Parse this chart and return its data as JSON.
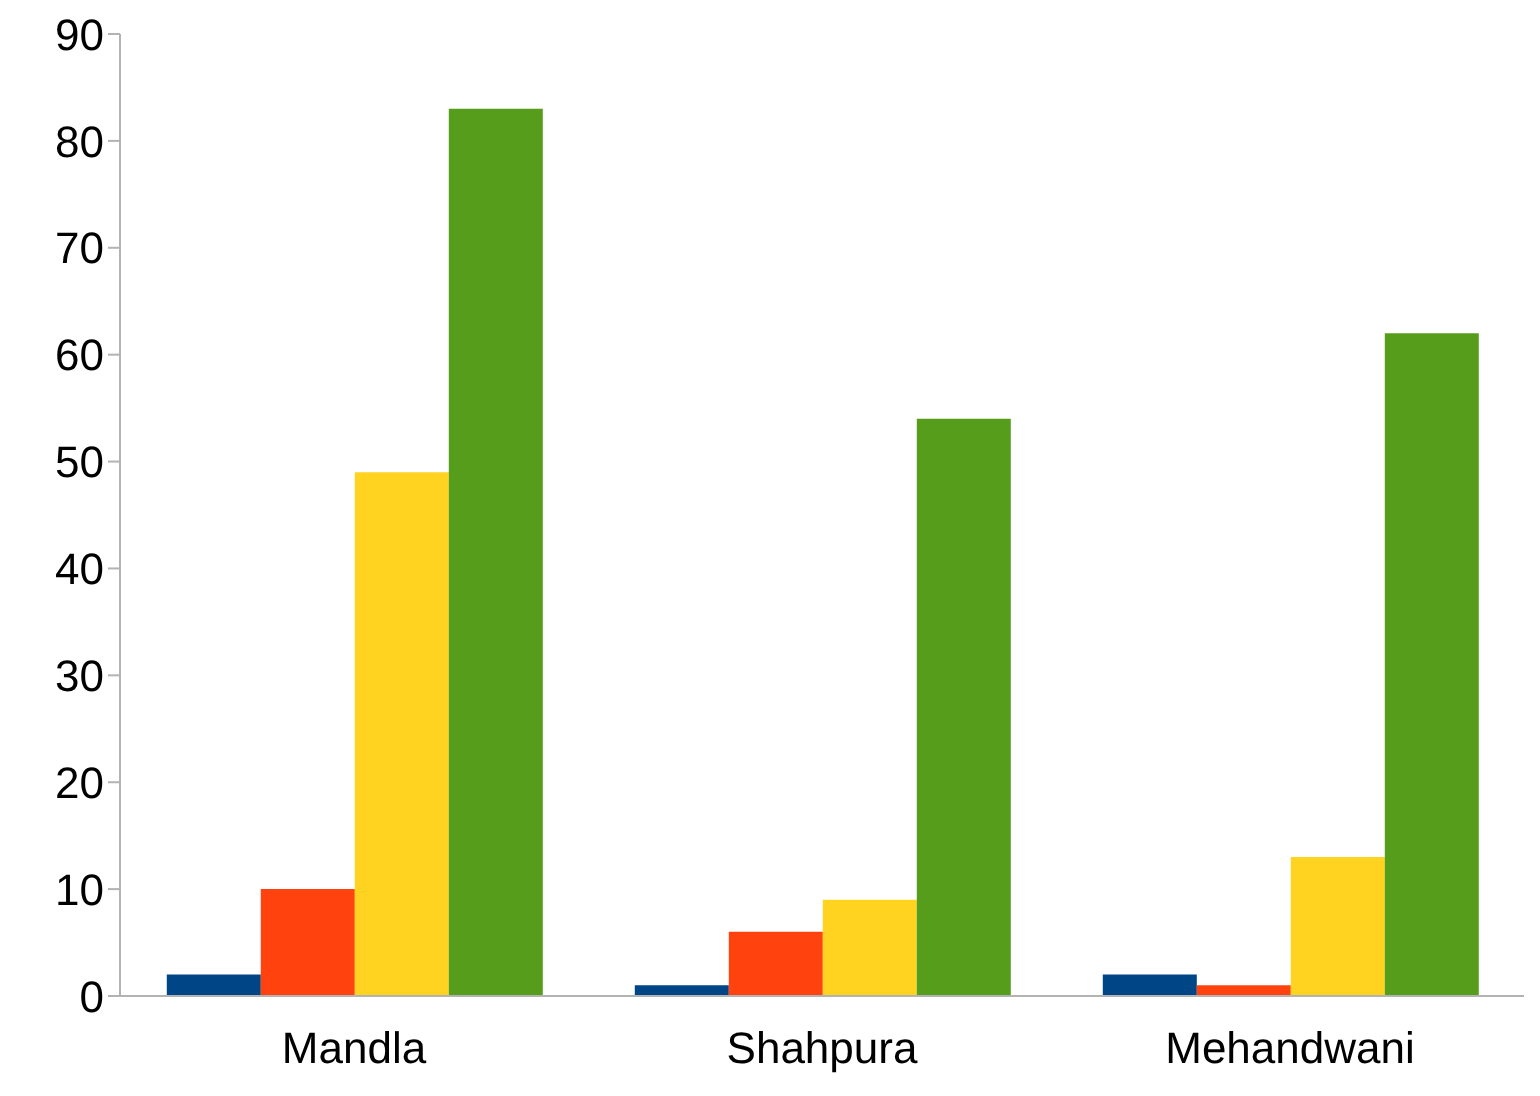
{
  "chart_data": {
    "type": "bar",
    "categories": [
      "Mandla",
      "Shahpura",
      "Mehandwani"
    ],
    "series": [
      {
        "color": "#004586",
        "values": [
          2,
          1,
          2
        ]
      },
      {
        "color": "#ff420e",
        "values": [
          10,
          6,
          1
        ]
      },
      {
        "color": "#ffd320",
        "values": [
          49,
          9,
          13
        ]
      },
      {
        "color": "#579d1c",
        "values": [
          83,
          54,
          62
        ]
      }
    ],
    "ylim": [
      0,
      90
    ],
    "yticks": [
      0,
      10,
      20,
      30,
      40,
      50,
      60,
      70,
      80,
      90
    ],
    "grid": false,
    "legend": false
  }
}
